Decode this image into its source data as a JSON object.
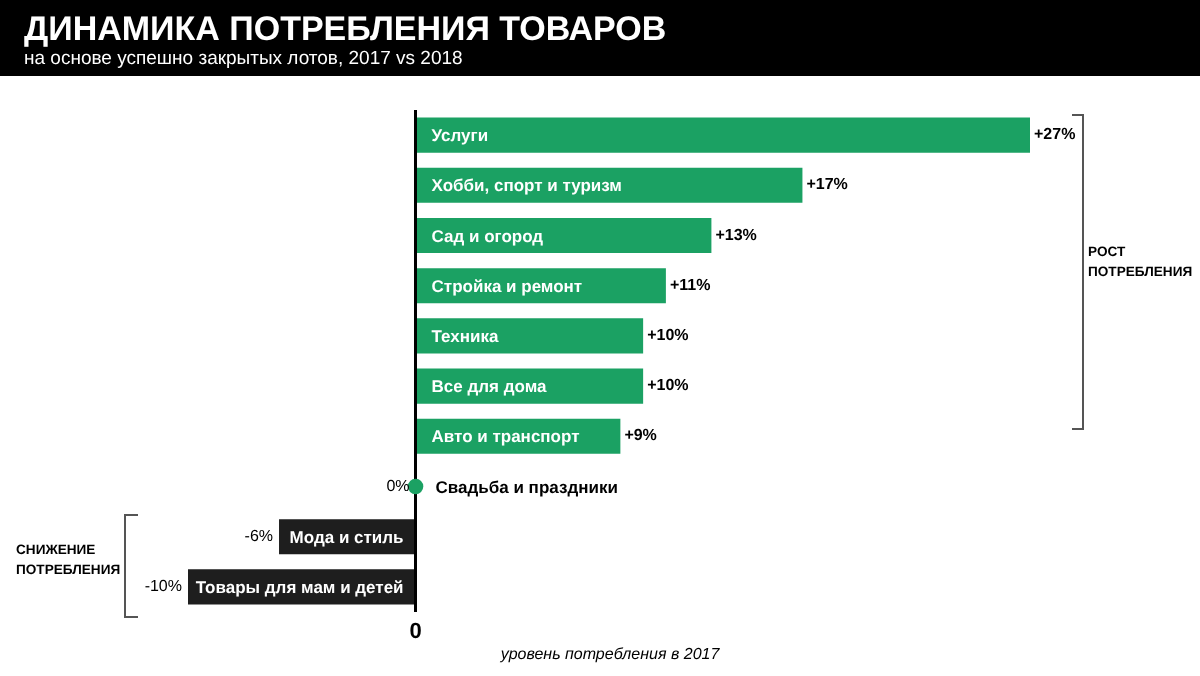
{
  "chart_data": {
    "type": "bar",
    "orientation": "horizontal",
    "title": "ДИНАМИКА ПОТРЕБЛЕНИЯ ТОВАРОВ",
    "subtitle": "на основе успешно закрытых лотов, 2017 vs 2018",
    "xlabel": "уровень потребления в 2017",
    "categories": [
      "Услуги",
      "Хобби, спорт и туризм",
      "Сад и огород",
      "Стройка и ремонт",
      "Техника",
      "Все для дома",
      "Авто и транспорт",
      "Свадьба и праздники",
      "Мода и стиль",
      "Товары для мам и детей"
    ],
    "values": [
      27,
      17,
      13,
      11,
      10,
      10,
      9,
      0,
      -6,
      -10
    ],
    "value_labels": [
      "+27%",
      "+17%",
      "+13%",
      "+11%",
      "+10%",
      "+10%",
      "+9%",
      "0%",
      "-6%",
      "-10%"
    ],
    "colors": [
      "#1ba163",
      "#1ba163",
      "#1ba163",
      "#1ba163",
      "#1ba163",
      "#1ba163",
      "#1ba163",
      "#1ba163",
      "#1e1e1e",
      "#1e1e1e"
    ],
    "series": [
      {
        "type": "scatter",
        "x": [
          "Свадьба и праздники"
        ],
        "values": [
          0
        ],
        "color": "#1ba163"
      }
    ],
    "annotations": [
      "РОСТ ПОТРЕБЛЕНИЯ",
      "СНИЖЕНИЕ ПОТРЕБЛЕНИЯ",
      "0"
    ]
  }
}
